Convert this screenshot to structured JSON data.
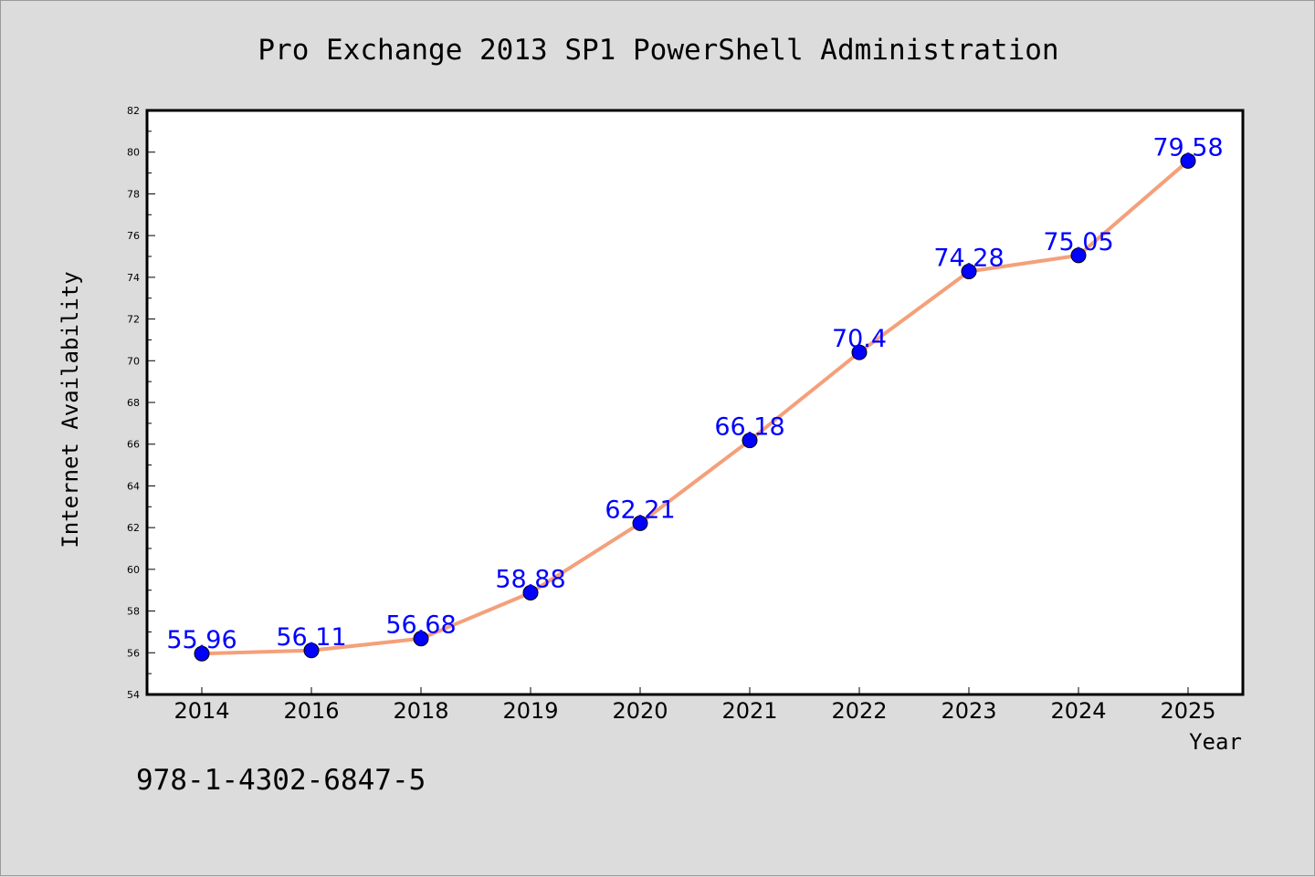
{
  "chart_data": {
    "type": "line",
    "title": "Pro Exchange 2013 SP1 PowerShell Administration",
    "xlabel": "Year",
    "ylabel": "Internet Availability",
    "categories": [
      "2014",
      "2016",
      "2018",
      "2019",
      "2020",
      "2021",
      "2022",
      "2023",
      "2024",
      "2025"
    ],
    "series": [
      {
        "values": [
          55.96,
          56.11,
          56.68,
          58.88,
          62.21,
          66.18,
          70.4,
          74.28,
          75.05,
          79.58
        ],
        "labels": [
          "55.96",
          "56.11",
          "56.68",
          "58.88",
          "62.21",
          "66.18",
          "70.4",
          "74.28",
          "75.05",
          "79.58"
        ]
      }
    ],
    "ylim": [
      54,
      82
    ],
    "yticks": [
      "54",
      "56",
      "58",
      "60",
      "62",
      "64",
      "66",
      "68",
      "70",
      "72",
      "74",
      "76",
      "78",
      "80",
      "82"
    ],
    "grid": false,
    "colors": {
      "line": "#f4a07a",
      "marker": "#0000ff",
      "data_label": "#0000ff",
      "background": "#dcdcdc",
      "plot_area": "#ffffff"
    }
  },
  "footer": {
    "isbn": "978-1-4302-6847-5"
  }
}
